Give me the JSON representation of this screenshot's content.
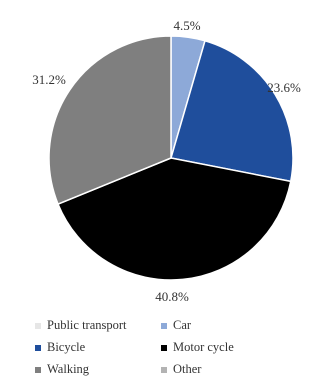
{
  "chart_data": {
    "type": "pie",
    "slices": [
      {
        "label": "Public transport",
        "value": 0.0,
        "color": "#e6e6e6",
        "data_label": ""
      },
      {
        "label": "Car",
        "value": 4.5,
        "color": "#8da9d8",
        "data_label": "4.5%"
      },
      {
        "label": "Bicycle",
        "value": 23.6,
        "color": "#1f4e9c",
        "data_label": "23.6%"
      },
      {
        "label": "Motor cycle",
        "value": 40.8,
        "color": "#000000",
        "data_label": "40.8%"
      },
      {
        "label": "Walking",
        "value": 31.2,
        "color": "#7f7f7f",
        "data_label": "31.2%"
      },
      {
        "label": "Other",
        "value": 0.0,
        "color": "#b3b3b3",
        "data_label": ""
      }
    ],
    "start_angle_deg": 0,
    "direction": "clockwise",
    "legend": {
      "placement": "bottom",
      "columns": 2
    }
  }
}
